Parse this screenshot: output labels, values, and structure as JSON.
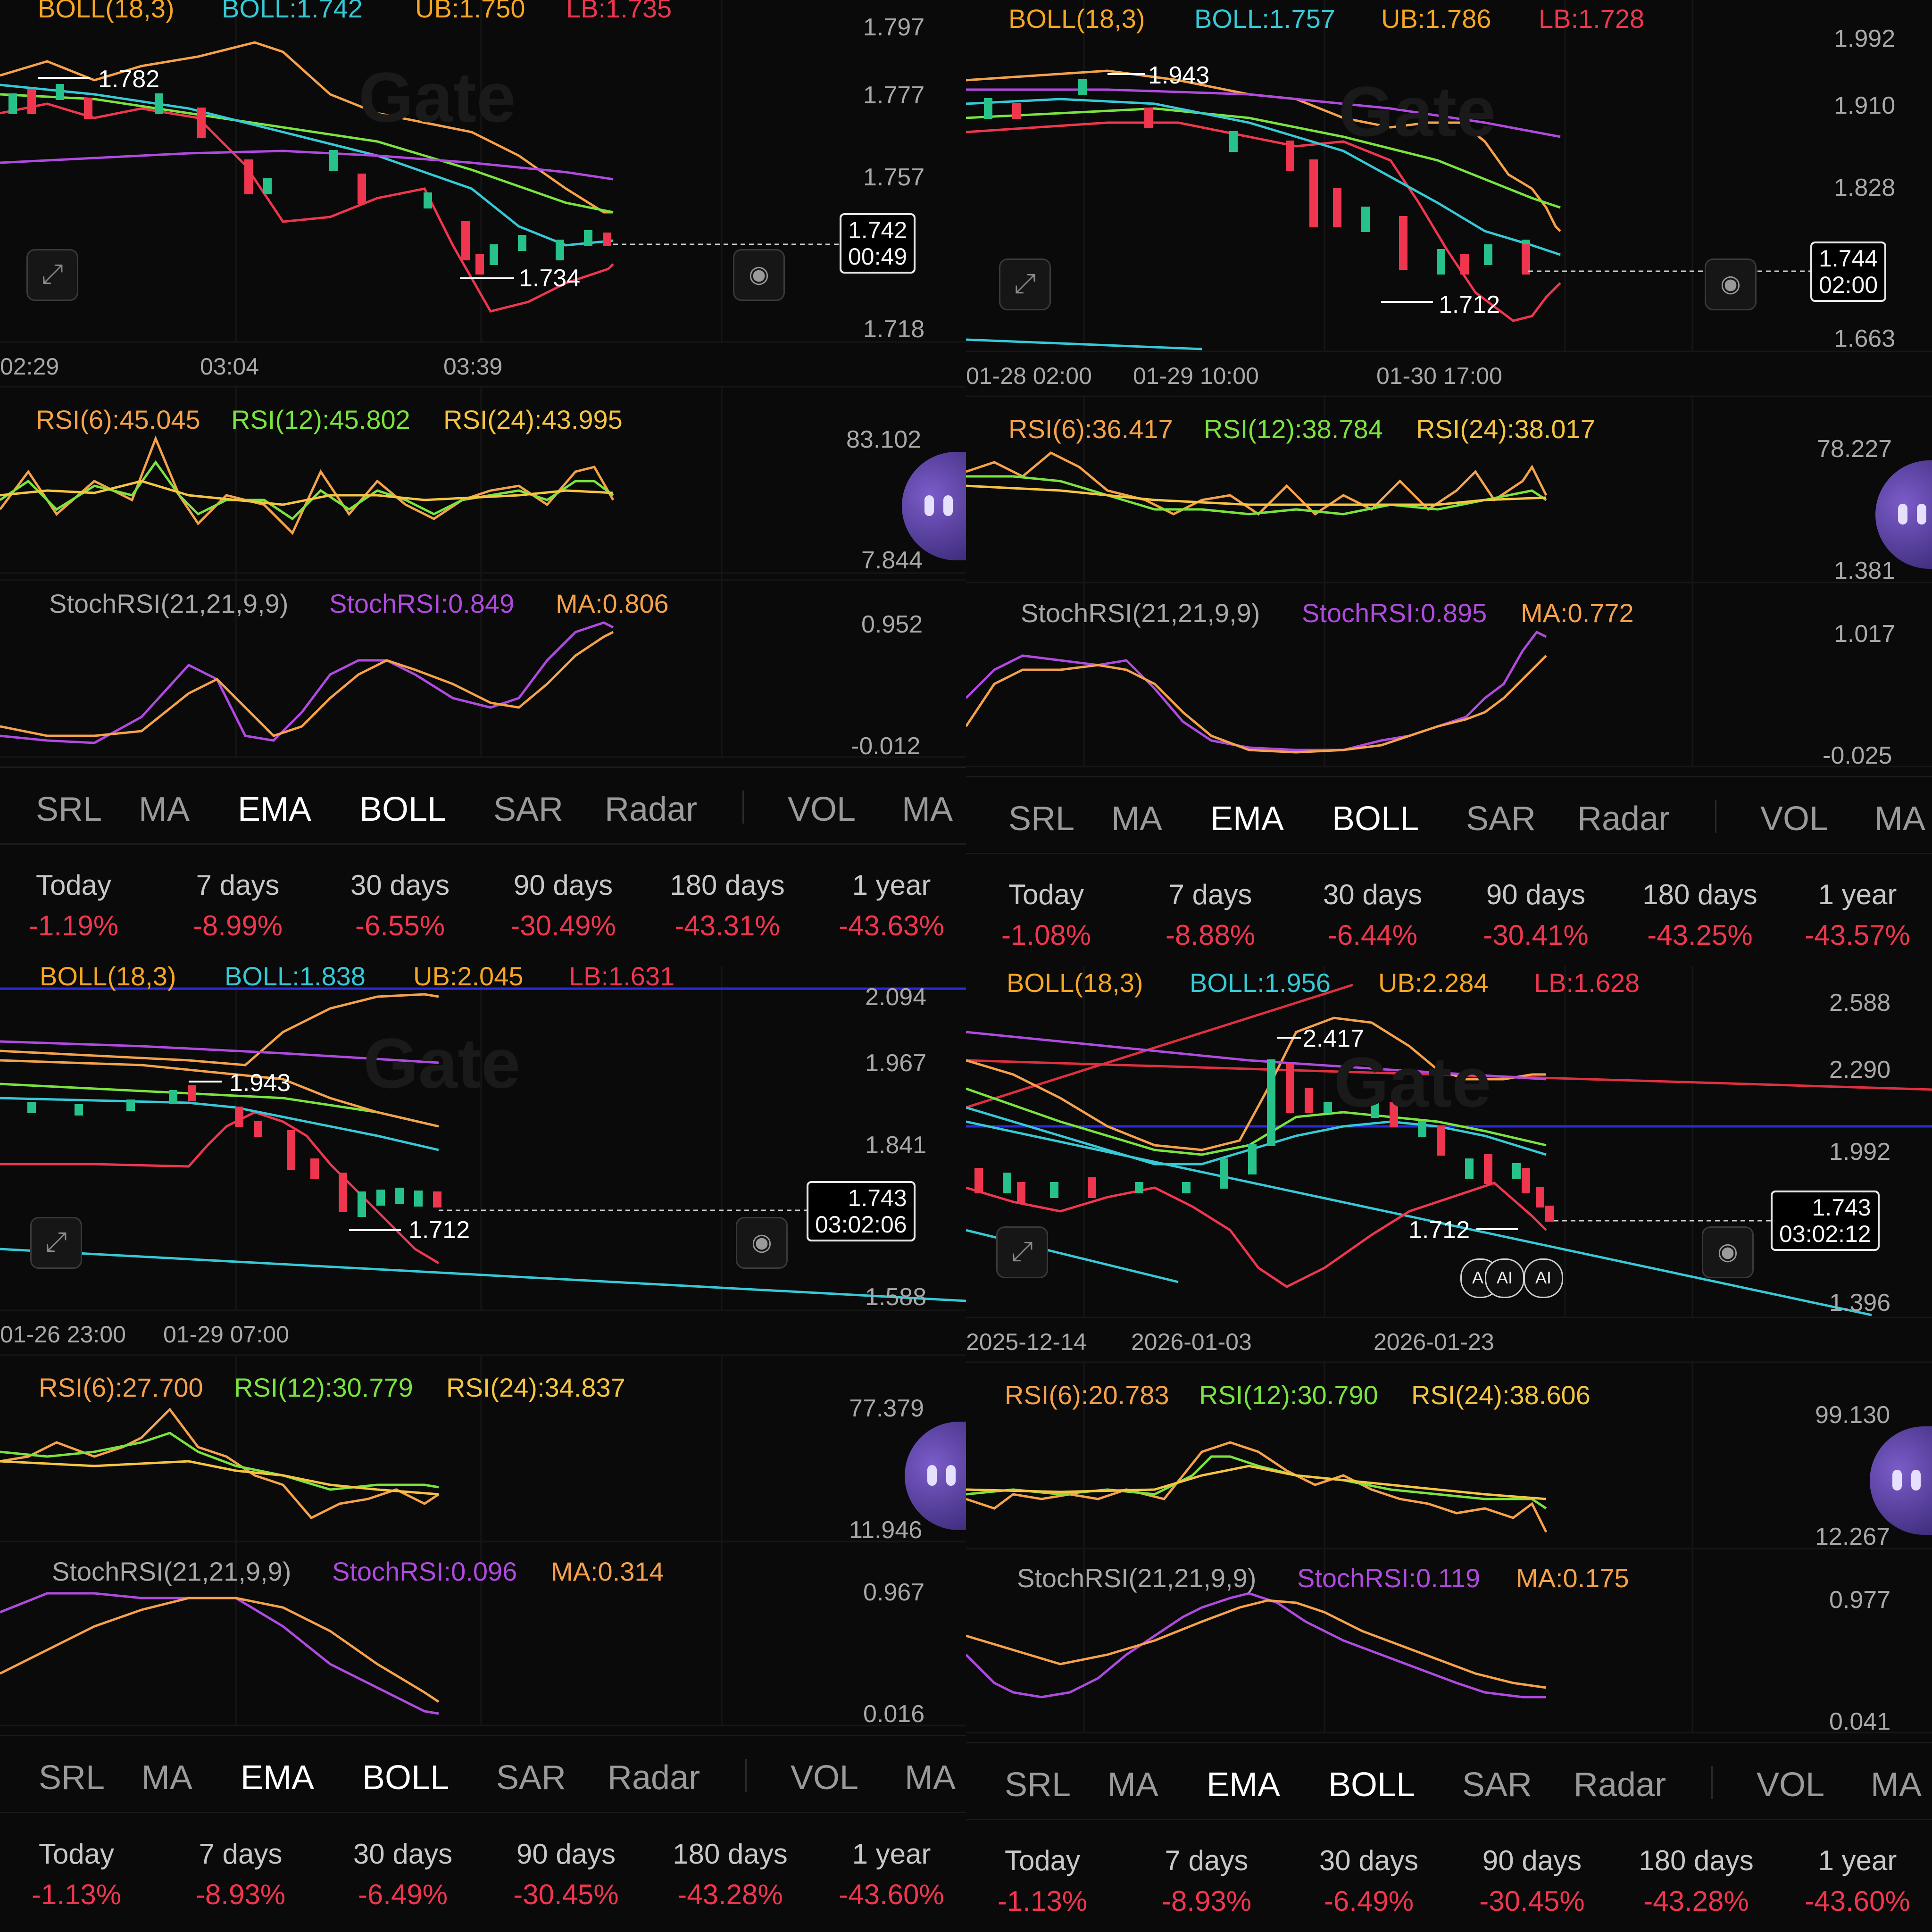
{
  "tabs": {
    "items": [
      "SRL",
      "MA",
      "EMA",
      "BOLL",
      "SAR",
      "Radar",
      "VOL",
      "MA"
    ],
    "active": [
      "EMA",
      "BOLL"
    ]
  },
  "watermark": "Gate",
  "eye_icon": "eye-icon",
  "expand_icon": "expand-icon",
  "colors": {
    "boll_label": "#f5a623",
    "boll_mid": "#36c9d6",
    "ub": "#f5a623",
    "lb": "#f0364f",
    "rsi6": "#f5a24a",
    "rsi12": "#7ae43f",
    "rsi24": "#f5c542",
    "stoch": "#b04ae0",
    "ma": "#f5a24a",
    "negative": "#f0364f"
  },
  "panels": [
    {
      "boll": {
        "name": "BOLL(18,3)",
        "mid": "BOLL:1.742",
        "ub": "UB:1.750",
        "lb": "LB:1.735"
      },
      "price_axis": [
        "1.797",
        "1.777",
        "1.757",
        "1.718"
      ],
      "price_box": {
        "price": "1.742",
        "time": "00:49"
      },
      "high_marker": "1.782",
      "low_marker": "1.734",
      "time_axis": [
        "02:29",
        "03:04",
        "03:39"
      ],
      "rsi": {
        "r6": "RSI(6):45.045",
        "r12": "RSI(12):45.802",
        "r24": "RSI(24):43.995",
        "max": "83.102",
        "min": "7.844"
      },
      "stoch": {
        "name": "StochRSI(21,21,9,9)",
        "value": "StochRSI:0.849",
        "ma": "MA:0.806",
        "max": "0.952",
        "min": "-0.012"
      },
      "perf": [
        {
          "label": "Today",
          "value": "-1.19%"
        },
        {
          "label": "7 days",
          "value": "-8.99%"
        },
        {
          "label": "30 days",
          "value": "-6.55%"
        },
        {
          "label": "90 days",
          "value": "-30.49%"
        },
        {
          "label": "180 days",
          "value": "-43.31%"
        },
        {
          "label": "1 year",
          "value": "-43.63%"
        }
      ]
    },
    {
      "boll": {
        "name": "BOLL(18,3)",
        "mid": "BOLL:1.757",
        "ub": "UB:1.786",
        "lb": "LB:1.728"
      },
      "price_axis": [
        "1.992",
        "1.910",
        "1.828",
        "1.663"
      ],
      "price_box": {
        "price": "1.744",
        "time": "02:00"
      },
      "high_marker": "1.943",
      "low_marker": "1.712",
      "time_axis": [
        "01-28 02:00",
        "01-29 10:00",
        "01-30 17:00"
      ],
      "rsi": {
        "r6": "RSI(6):36.417",
        "r12": "RSI(12):38.784",
        "r24": "RSI(24):38.017",
        "max": "78.227",
        "min": "1.381"
      },
      "stoch": {
        "name": "StochRSI(21,21,9,9)",
        "value": "StochRSI:0.895",
        "ma": "MA:0.772",
        "max": "1.017",
        "min": "-0.025"
      },
      "perf": [
        {
          "label": "Today",
          "value": "-1.08%"
        },
        {
          "label": "7 days",
          "value": "-8.88%"
        },
        {
          "label": "30 days",
          "value": "-6.44%"
        },
        {
          "label": "90 days",
          "value": "-30.41%"
        },
        {
          "label": "180 days",
          "value": "-43.25%"
        },
        {
          "label": "1 year",
          "value": "-43.57%"
        }
      ]
    },
    {
      "boll": {
        "name": "BOLL(18,3)",
        "mid": "BOLL:1.838",
        "ub": "UB:2.045",
        "lb": "LB:1.631"
      },
      "price_axis": [
        "2.094",
        "1.967",
        "1.841",
        "1.588"
      ],
      "price_box": {
        "price": "1.743",
        "time": "03:02:06"
      },
      "high_marker": "1.943",
      "low_marker": "1.712",
      "time_axis": [
        "01-26 23:00",
        "01-29 07:00"
      ],
      "rsi": {
        "r6": "RSI(6):27.700",
        "r12": "RSI(12):30.779",
        "r24": "RSI(24):34.837",
        "max": "77.379",
        "min": "11.946"
      },
      "stoch": {
        "name": "StochRSI(21,21,9,9)",
        "value": "StochRSI:0.096",
        "ma": "MA:0.314",
        "max": "0.967",
        "min": "0.016"
      },
      "perf": [
        {
          "label": "Today",
          "value": "-1.13%"
        },
        {
          "label": "7 days",
          "value": "-8.93%"
        },
        {
          "label": "30 days",
          "value": "-6.49%"
        },
        {
          "label": "90 days",
          "value": "-30.45%"
        },
        {
          "label": "180 days",
          "value": "-43.28%"
        },
        {
          "label": "1 year",
          "value": "-43.60%"
        }
      ]
    },
    {
      "boll": {
        "name": "BOLL(18,3)",
        "mid": "BOLL:1.956",
        "ub": "UB:2.284",
        "lb": "LB:1.628"
      },
      "price_axis": [
        "2.588",
        "2.290",
        "1.992",
        "1.396"
      ],
      "price_box": {
        "price": "1.743",
        "time": "03:02:12"
      },
      "high_marker": "2.417",
      "low_marker": "1.712",
      "time_axis": [
        "2025-12-14",
        "2026-01-03",
        "2026-01-23"
      ],
      "ai_badges": [
        "AI",
        "AI",
        "AI"
      ],
      "rsi": {
        "r6": "RSI(6):20.783",
        "r12": "RSI(12):30.790",
        "r24": "RSI(24):38.606",
        "max": "99.130",
        "min": "12.267"
      },
      "stoch": {
        "name": "StochRSI(21,21,9,9)",
        "value": "StochRSI:0.119",
        "ma": "MA:0.175",
        "max": "0.977",
        "min": "0.041"
      },
      "perf": [
        {
          "label": "Today",
          "value": "-1.13%"
        },
        {
          "label": "7 days",
          "value": "-8.93%"
        },
        {
          "label": "30 days",
          "value": "-6.49%"
        },
        {
          "label": "90 days",
          "value": "-30.45%"
        },
        {
          "label": "180 days",
          "value": "-43.28%"
        },
        {
          "label": "1 year",
          "value": "-43.60%"
        }
      ]
    }
  ]
}
